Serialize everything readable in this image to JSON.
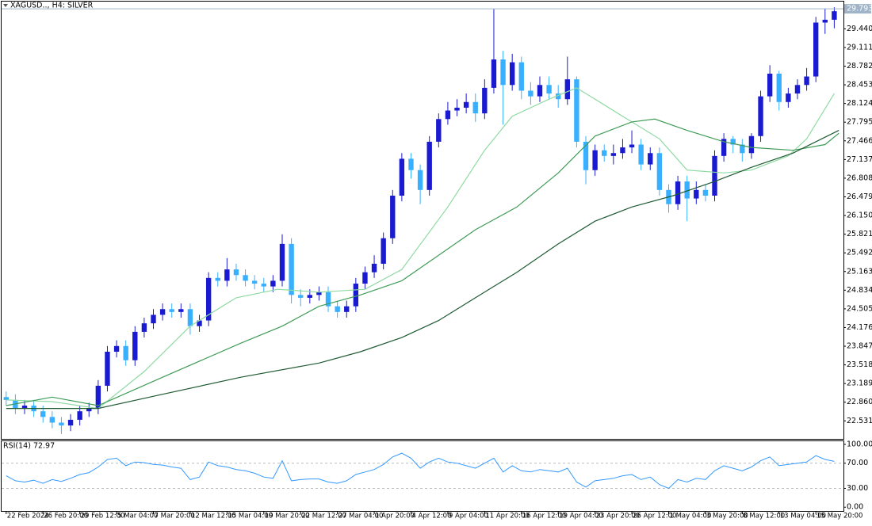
{
  "chart_data": [
    {
      "type": "candlestick",
      "title": "XAGUSD.., H4: SILVER",
      "up_color": "#1a1ad0",
      "down_color": "#39b0ff",
      "xlim": [
        -0.5,
        91
      ],
      "ylim": [
        22.2,
        29.92
      ],
      "yticks": [
        22.531,
        {
          "value": 22.86,
          "label": "22.860"
        },
        23.189,
        23.518,
        23.847,
        24.176,
        24.505,
        24.834,
        25.163,
        25.492,
        25.821,
        {
          "value": 26.15,
          "label": "26.150"
        },
        26.479,
        26.808,
        27.137,
        27.466,
        27.795,
        28.124,
        28.453,
        28.782,
        29.111,
        {
          "value": 29.44,
          "label": "29.440"
        }
      ],
      "last_price": 29.793,
      "open": [
        22.95,
        22.9,
        22.75,
        22.8,
        22.7,
        22.6,
        22.5,
        22.45,
        22.55,
        22.7,
        22.75,
        23.15,
        23.75,
        23.85,
        23.6,
        24.1,
        24.25,
        24.4,
        24.5,
        24.45,
        24.5,
        24.2,
        24.3,
        25.05,
        25.0,
        25.2,
        25.1,
        25.0,
        24.95,
        24.9,
        25.0,
        25.65,
        24.75,
        24.7,
        24.75,
        24.8,
        24.55,
        24.45,
        24.55,
        24.95,
        25.15,
        25.3,
        25.75,
        26.5,
        27.15,
        26.95,
        26.6,
        27.45,
        27.85,
        28.0,
        28.05,
        28.15,
        27.95,
        28.4,
        28.9,
        28.45,
        28.85,
        28.35,
        28.25,
        28.45,
        28.3,
        28.2,
        28.55,
        27.45,
        26.95,
        27.3,
        27.2,
        27.25,
        27.35,
        27.4,
        27.05,
        27.25,
        26.6,
        26.35,
        26.75,
        26.45,
        26.6,
        26.5,
        27.2,
        27.5,
        27.4,
        27.25,
        27.55,
        28.25,
        28.65,
        28.15,
        28.3,
        28.45,
        28.6,
        29.55,
        29.6
      ],
      "high": [
        23.05,
        23.0,
        22.9,
        22.9,
        22.8,
        22.7,
        22.6,
        22.65,
        22.8,
        22.85,
        23.25,
        23.85,
        23.95,
        23.95,
        24.2,
        24.35,
        24.5,
        24.6,
        24.6,
        24.6,
        24.6,
        24.4,
        25.15,
        25.15,
        25.4,
        25.3,
        25.2,
        25.1,
        25.05,
        25.1,
        25.82,
        25.75,
        24.85,
        24.85,
        24.9,
        24.9,
        24.65,
        24.65,
        25.05,
        25.25,
        25.45,
        25.85,
        26.6,
        27.25,
        27.25,
        27.05,
        27.55,
        27.95,
        28.15,
        28.2,
        28.3,
        28.3,
        28.55,
        29.79,
        29.05,
        29.0,
        28.95,
        28.5,
        28.6,
        28.6,
        28.45,
        28.95,
        28.6,
        27.55,
        27.4,
        27.4,
        27.4,
        27.5,
        27.65,
        27.5,
        27.35,
        27.35,
        26.7,
        26.85,
        26.85,
        26.75,
        26.7,
        27.3,
        27.6,
        27.55,
        27.5,
        27.6,
        28.35,
        28.8,
        28.7,
        28.4,
        28.55,
        28.75,
        29.65,
        29.8,
        29.82
      ],
      "low": [
        22.8,
        22.65,
        22.65,
        22.6,
        22.5,
        22.4,
        22.3,
        22.35,
        22.45,
        22.6,
        22.65,
        23.05,
        23.65,
        23.5,
        23.5,
        24.0,
        24.15,
        24.3,
        24.35,
        24.35,
        24.05,
        24.1,
        24.2,
        24.9,
        24.9,
        25.0,
        24.9,
        24.85,
        24.8,
        24.8,
        24.9,
        24.6,
        24.55,
        24.6,
        24.65,
        24.45,
        24.35,
        24.35,
        24.45,
        24.85,
        25.05,
        25.2,
        25.65,
        26.4,
        26.8,
        26.35,
        26.5,
        27.35,
        27.75,
        27.9,
        27.95,
        27.8,
        27.85,
        28.3,
        27.75,
        28.35,
        28.2,
        28.1,
        28.15,
        28.2,
        28.05,
        28.1,
        27.35,
        26.7,
        26.85,
        27.1,
        27.05,
        27.15,
        27.25,
        26.95,
        26.95,
        26.5,
        26.2,
        26.25,
        26.05,
        26.35,
        26.4,
        26.4,
        27.1,
        27.25,
        27.1,
        27.15,
        27.45,
        28.15,
        28.0,
        28.05,
        28.2,
        28.35,
        28.5,
        29.35,
        29.45
      ],
      "close": [
        22.9,
        22.75,
        22.8,
        22.7,
        22.6,
        22.5,
        22.45,
        22.55,
        22.7,
        22.75,
        23.15,
        23.75,
        23.85,
        23.6,
        24.1,
        24.25,
        24.4,
        24.5,
        24.45,
        24.5,
        24.2,
        24.3,
        25.05,
        25.0,
        25.2,
        25.1,
        25.0,
        24.95,
        24.9,
        25.0,
        25.65,
        24.75,
        24.7,
        24.75,
        24.8,
        24.55,
        24.45,
        24.55,
        24.95,
        25.15,
        25.3,
        25.75,
        26.5,
        27.15,
        26.95,
        26.6,
        27.45,
        27.85,
        28.0,
        28.05,
        28.15,
        27.95,
        28.4,
        28.9,
        28.45,
        28.85,
        28.35,
        28.25,
        28.45,
        28.3,
        28.2,
        28.55,
        27.45,
        26.95,
        27.3,
        27.2,
        27.25,
        27.35,
        27.4,
        27.05,
        27.25,
        26.6,
        26.35,
        26.75,
        26.45,
        26.6,
        26.5,
        27.2,
        27.5,
        27.4,
        27.25,
        27.55,
        28.25,
        28.65,
        28.15,
        28.3,
        28.45,
        28.6,
        29.55,
        29.6,
        29.75
      ],
      "series": [
        {
          "color": "#8fd9a2",
          "x": [
            0,
            5,
            10,
            15,
            20,
            25,
            29.5,
            34,
            39,
            43,
            48,
            52,
            55,
            59,
            62,
            67,
            71,
            74,
            78,
            81,
            85,
            87,
            90
          ],
          "values": [
            22.9,
            22.87,
            22.75,
            23.4,
            24.2,
            24.7,
            24.85,
            24.8,
            24.85,
            25.2,
            26.3,
            27.3,
            27.9,
            28.2,
            28.4,
            27.9,
            27.5,
            26.95,
            26.9,
            26.95,
            27.2,
            27.5,
            28.3
          ]
        },
        {
          "color": "#3f9c57",
          "x": [
            0,
            5,
            10,
            17,
            25.5,
            30,
            34,
            38.5,
            43,
            47,
            51,
            55.5,
            60,
            64,
            68,
            70.5,
            74,
            78,
            81,
            85.5,
            89,
            90.5
          ],
          "values": [
            22.8,
            22.95,
            22.8,
            23.3,
            23.9,
            24.2,
            24.55,
            24.75,
            25.0,
            25.45,
            25.9,
            26.3,
            26.9,
            27.55,
            27.8,
            27.85,
            27.65,
            27.45,
            27.35,
            27.3,
            27.4,
            27.6
          ]
        },
        {
          "color": "#1f5a33",
          "x": [
            0,
            10,
            17,
            25.5,
            34,
            38.5,
            43,
            47,
            51,
            55.5,
            60,
            64,
            68,
            72.5,
            77,
            81,
            85.5,
            90.5
          ],
          "values": [
            22.75,
            22.75,
            23.0,
            23.3,
            23.55,
            23.75,
            24.0,
            24.3,
            24.7,
            25.15,
            25.65,
            26.05,
            26.3,
            26.5,
            26.75,
            27.0,
            27.25,
            27.65
          ]
        }
      ]
    },
    {
      "type": "line",
      "title": "RSI(14) 72.97",
      "color": "#3399ff",
      "xlim": [
        -0.5,
        91
      ],
      "ylim": [
        -6,
        105
      ],
      "yticks": [
        {
          "value": 100,
          "label": "100.00"
        },
        {
          "value": 70,
          "label": "70.00"
        },
        {
          "value": 30,
          "label": "30.00"
        },
        {
          "value": 0,
          "label": "0.00"
        }
      ],
      "xticks": [
        {
          "value": 0,
          "label": "22 Feb 2024"
        },
        {
          "value": 4,
          "label": "26 Feb 20:00"
        },
        {
          "value": 8,
          "label": "29 Feb 12:00"
        },
        {
          "value": 12,
          "label": "5 Mar 04:00"
        },
        {
          "value": 16,
          "label": "7 Mar 20:00"
        },
        {
          "value": 20,
          "label": "12 Mar 12:00"
        },
        {
          "value": 24,
          "label": "15 Mar 04:00"
        },
        {
          "value": 28,
          "label": "19 Mar 20:00"
        },
        {
          "value": 32,
          "label": "22 Mar 12:00"
        },
        {
          "value": 36,
          "label": "27 Mar 04:00"
        },
        {
          "value": 40,
          "label": "1 Apr 20:00"
        },
        {
          "value": 44,
          "label": "4 Apr 12:00"
        },
        {
          "value": 48,
          "label": "9 Apr 04:00"
        },
        {
          "value": 52,
          "label": "11 Apr 20:00"
        },
        {
          "value": 56,
          "label": "16 Apr 12:00"
        },
        {
          "value": 60,
          "label": "19 Apr 04:00"
        },
        {
          "value": 64,
          "label": "23 Apr 20:00"
        },
        {
          "value": 68,
          "label": "26 Apr 12:00"
        },
        {
          "value": 72,
          "label": "1 May 04:00"
        },
        {
          "value": 76,
          "label": "3 May 20:00"
        },
        {
          "value": 80,
          "label": "8 May 12:00"
        },
        {
          "value": 84,
          "label": "13 May 04:00"
        },
        {
          "value": 88,
          "label": "15 May 20:00"
        }
      ],
      "values": [
        50,
        42,
        40,
        43,
        38,
        44,
        41,
        46,
        52,
        55,
        64,
        76,
        78,
        66,
        72,
        71,
        68,
        67,
        64,
        62,
        44,
        48,
        72,
        66,
        64,
        60,
        58,
        54,
        48,
        46,
        74,
        42,
        44,
        45,
        45,
        40,
        38,
        42,
        52,
        56,
        60,
        68,
        80,
        86,
        78,
        62,
        72,
        78,
        72,
        70,
        66,
        62,
        70,
        78,
        56,
        66,
        58,
        56,
        60,
        58,
        56,
        62,
        40,
        32,
        42,
        44,
        46,
        50,
        52,
        44,
        48,
        36,
        30,
        44,
        40,
        46,
        44,
        58,
        66,
        62,
        58,
        64,
        74,
        80,
        66,
        68,
        70,
        72,
        82,
        76,
        72.97
      ]
    }
  ]
}
